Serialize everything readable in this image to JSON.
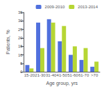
{
  "chart_data": {
    "type": "bar",
    "categories": [
      "15-20",
      "21-30",
      "31-40",
      "41-50",
      "51-60",
      "61-70",
      ">70"
    ],
    "series": [
      {
        "name": "2009-2010",
        "values": [
          4,
          29,
          31,
          18,
          10,
          7,
          3
        ]
      },
      {
        "name": "2013-2014",
        "values": [
          2,
          14,
          29,
          27,
          15,
          14,
          6
        ]
      }
    ],
    "xlabel": "Age group, yrs",
    "ylabel": "Patients, %",
    "ylim": [
      0,
      35
    ],
    "yticks": [
      0,
      5,
      10,
      15,
      20,
      25,
      30,
      35
    ],
    "legend": "upper right",
    "grid": false
  }
}
